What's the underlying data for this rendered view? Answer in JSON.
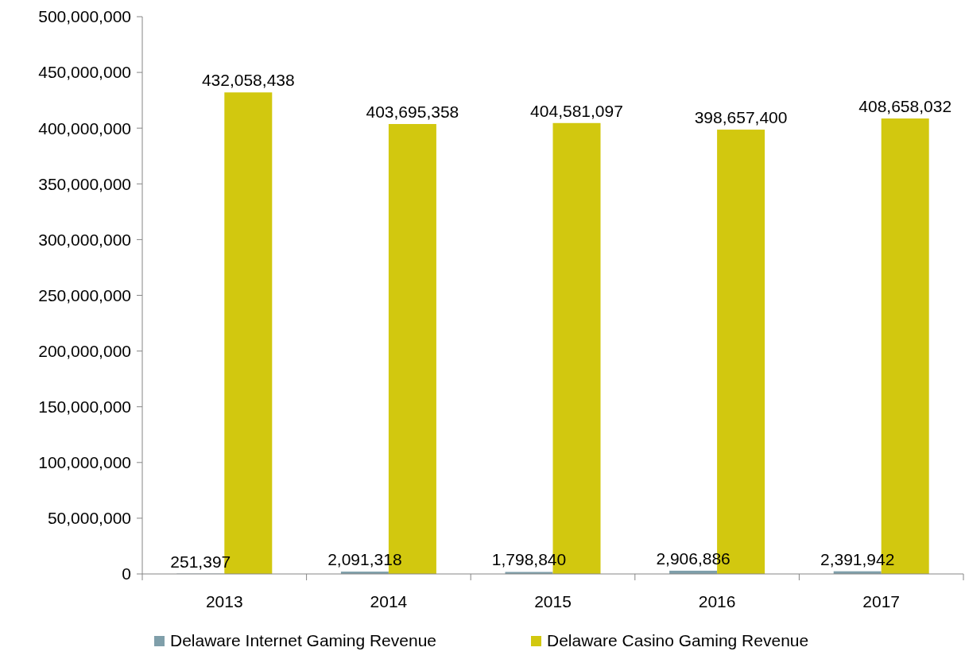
{
  "chart_data": {
    "type": "bar",
    "categories": [
      "2013",
      "2014",
      "2015",
      "2016",
      "2017"
    ],
    "series": [
      {
        "name": "Delaware Internet Gaming Revenue",
        "color": "#7f9faa",
        "values": [
          251397,
          2091318,
          1798840,
          2906886,
          2391942
        ],
        "value_labels": [
          "251,397",
          "2,091,318",
          "1,798,840",
          "2,906,886",
          "2,391,942"
        ]
      },
      {
        "name": "Delaware Casino Gaming Revenue",
        "color": "#d2c80f",
        "values": [
          432058438,
          403695358,
          404581097,
          398657400,
          408658032
        ],
        "value_labels": [
          "432,058,438",
          "403,695,358",
          "404,581,097",
          "398,657,400",
          "408,658,032"
        ]
      }
    ],
    "ylim": [
      0,
      500000000
    ],
    "yticks": [
      {
        "value": 0,
        "label": "0"
      },
      {
        "value": 50000000,
        "label": "50,000,000"
      },
      {
        "value": 100000000,
        "label": "100,000,000"
      },
      {
        "value": 150000000,
        "label": "150,000,000"
      },
      {
        "value": 200000000,
        "label": "200,000,000"
      },
      {
        "value": 250000000,
        "label": "250,000,000"
      },
      {
        "value": 300000000,
        "label": "300,000,000"
      },
      {
        "value": 350000000,
        "label": "350,000,000"
      },
      {
        "value": 400000000,
        "label": "400,000,000"
      },
      {
        "value": 450000000,
        "label": "450,000,000"
      },
      {
        "value": 500000000,
        "label": "500,000,000"
      }
    ],
    "grid": false,
    "legend": "bottom"
  }
}
